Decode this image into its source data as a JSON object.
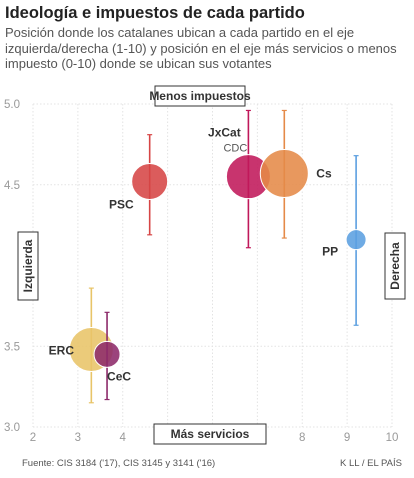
{
  "title": "Ideología e impuestos de cada partido",
  "subtitle": "Posición donde los catalanes ubican a cada partido en el eje izquierda/derecha (1-10) y posición en el eje más servicios o menos impuesto (0-10) donde se ubican sus votantes",
  "footer": {
    "source": "Fuente: CIS 3184 ('17), CIS 3145 y 3141 ('16)",
    "credit": "K LL / EL PAÍS"
  },
  "chart_data": {
    "type": "scatter",
    "xlim": [
      2,
      10
    ],
    "ylim": [
      3.0,
      5.0
    ],
    "x_ticks": [
      "2",
      "3",
      "4",
      "5",
      "6",
      "7",
      "8",
      "9",
      "10"
    ],
    "y_ticks": [
      "3.0",
      "3.5",
      "4.5",
      "5.0"
    ],
    "grid": true,
    "annotations": {
      "top": "Menos impuestos",
      "bottom": "Más servicios",
      "left": "Izquierda",
      "right": "Derecha"
    },
    "points": [
      {
        "name": "PSC",
        "x": 4.6,
        "y": 4.52,
        "y_low": 4.19,
        "y_high": 4.81,
        "color": "#d64545"
      },
      {
        "name": "JxCat",
        "sub": "CDC",
        "x": 6.8,
        "y": 4.55,
        "y_low": 4.11,
        "y_high": 4.96,
        "color": "#c0185a"
      },
      {
        "name": "Cs",
        "x": 7.6,
        "y": 4.57,
        "y_low": 4.17,
        "y_high": 4.96,
        "color": "#e58a48"
      },
      {
        "name": "PP",
        "x": 9.2,
        "y": 4.16,
        "y_low": 3.63,
        "y_high": 4.68,
        "color": "#5b9fe0"
      },
      {
        "name": "ERC",
        "x": 3.3,
        "y": 3.48,
        "y_low": 3.15,
        "y_high": 3.86,
        "color": "#e8c468"
      },
      {
        "name": "CeC",
        "x": 3.65,
        "y": 3.45,
        "y_low": 3.17,
        "y_high": 3.71,
        "color": "#8d2a6a"
      }
    ]
  }
}
